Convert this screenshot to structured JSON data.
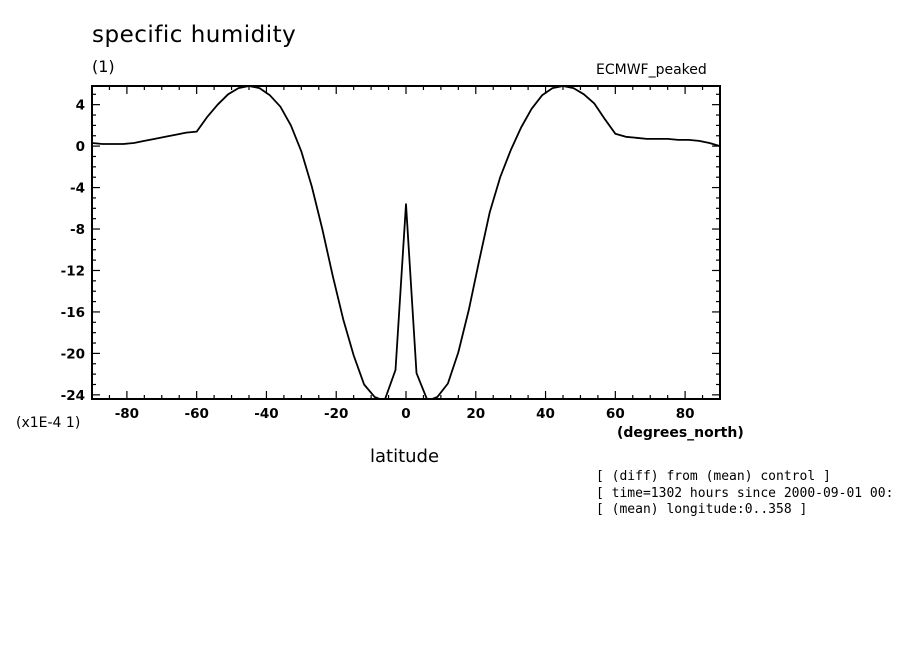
{
  "chart_data": {
    "type": "line",
    "title": "specific humidity",
    "units_label": "(1)",
    "top_right_label": "ECMWF_peaked",
    "xlabel": "latitude",
    "x_units": "(degrees_north)",
    "y_scale_label": "(x1E-4 1)",
    "xlim": [
      -90,
      90
    ],
    "ylim": [
      -24.4,
      5.8
    ],
    "x_ticks": [
      -80,
      -60,
      -40,
      -20,
      0,
      20,
      40,
      60,
      80
    ],
    "y_ticks": [
      4,
      0,
      -4,
      -8,
      -12,
      -16,
      -20,
      -24
    ],
    "grid": false,
    "series": [
      {
        "x": [
          -90,
          -87,
          -84,
          -81,
          -78,
          -75,
          -72,
          -69,
          -66,
          -63,
          -60,
          -57,
          -54,
          -51,
          -48,
          -45,
          -42,
          -39,
          -36,
          -33,
          -30,
          -27,
          -24,
          -21,
          -18,
          -15,
          -12,
          -9,
          -7.5,
          -6,
          -3,
          0,
          3,
          6,
          7.5,
          9,
          12,
          15,
          18,
          21,
          24,
          27,
          30,
          33,
          36,
          39,
          42,
          45,
          48,
          51,
          54,
          57,
          60,
          63,
          66,
          69,
          72,
          75,
          78,
          81,
          84,
          87,
          90
        ],
        "y": [
          0.3,
          0.2,
          0.2,
          0.2,
          0.3,
          0.5,
          0.7,
          0.9,
          1.1,
          1.3,
          1.4,
          2.8,
          4.0,
          5.0,
          5.6,
          5.8,
          5.6,
          4.9,
          3.8,
          2.0,
          -0.5,
          -3.9,
          -8.0,
          -12.5,
          -16.7,
          -20.2,
          -23.0,
          -24.2,
          -24.4,
          -24.4,
          -21.6,
          -5.6,
          -21.9,
          -24.4,
          -24.4,
          -24.2,
          -22.9,
          -19.9,
          -15.8,
          -11.0,
          -6.4,
          -3.0,
          -0.4,
          1.8,
          3.6,
          4.9,
          5.6,
          5.8,
          5.6,
          5.0,
          4.1,
          2.6,
          1.2,
          0.9,
          0.8,
          0.7,
          0.7,
          0.7,
          0.6,
          0.6,
          0.5,
          0.3,
          0.0
        ]
      }
    ]
  },
  "notes": [
    "[ (diff) from (mean) control ]",
    "[ time=1302 hours since 2000-09-01 00:",
    "[ (mean) longitude:0..358 ]"
  ]
}
